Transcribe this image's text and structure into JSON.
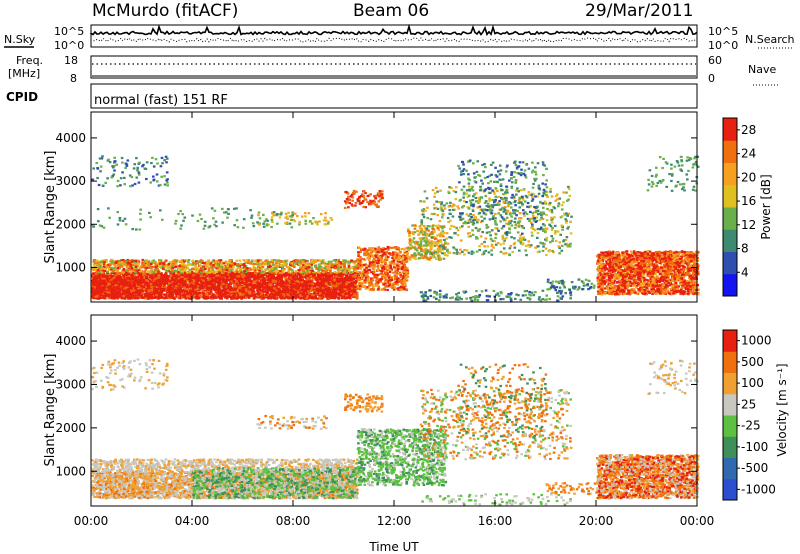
{
  "header": {
    "station": "McMurdo (fitACF)",
    "beam": "Beam 06",
    "date": "29/Mar/2011"
  },
  "status_panels": {
    "nsky_label": "N.Sky",
    "nsearch_label": "N.Search",
    "noise_ticks": [
      "10^5",
      "10^0"
    ],
    "freq_label_line1": "Freq.",
    "freq_label_line2": "[MHz]",
    "freq_ticks": [
      "18",
      "8"
    ],
    "nave_label": "Nave",
    "nave_ticks": [
      "60",
      "0"
    ],
    "cpid_label": "CPID",
    "cpid_value": "normal (fast) 151 RF"
  },
  "chart_data": [
    {
      "type": "heatmap",
      "name": "power",
      "ylabel": "Slant Range [km]",
      "y_ticks": [
        1000,
        2000,
        3000,
        4000
      ],
      "ylim": [
        200,
        4600
      ],
      "colorbar_label": "Power [dB]",
      "colorbar_ticks": [
        4,
        8,
        12,
        16,
        20,
        24,
        28
      ],
      "colorbar_range": [
        0,
        30
      ],
      "colors": [
        "#1414f0",
        "#2e4fb0",
        "#3d8a6e",
        "#6ab04a",
        "#e0c020",
        "#f5a020",
        "#f07010",
        "#e82010"
      ]
    },
    {
      "type": "heatmap",
      "name": "velocity",
      "ylabel": "Slant Range [km]",
      "y_ticks": [
        1000,
        2000,
        3000,
        4000
      ],
      "ylim": [
        200,
        4600
      ],
      "colorbar_label": "Velocity [m s⁻¹]",
      "colorbar_ticks": [
        "1000",
        "500",
        "100",
        "25",
        "-25",
        "-100",
        "-500",
        "-1000"
      ],
      "colors": [
        "#2a4fd0",
        "#2f6ab0",
        "#3f8f5a",
        "#5cc040",
        "#c8c8c0",
        "#f0a030",
        "#f07010",
        "#e82010"
      ]
    }
  ],
  "x_axis": {
    "ticks": [
      "00:00",
      "04:00",
      "08:00",
      "12:00",
      "16:00",
      "20:00",
      "00:00"
    ],
    "label": "Time UT"
  },
  "colors": {
    "red": "#e81e10",
    "orange": "#f5a020",
    "green": "#5cc040",
    "blue": "#2e4fb0",
    "grey": "#c8c8c0"
  }
}
